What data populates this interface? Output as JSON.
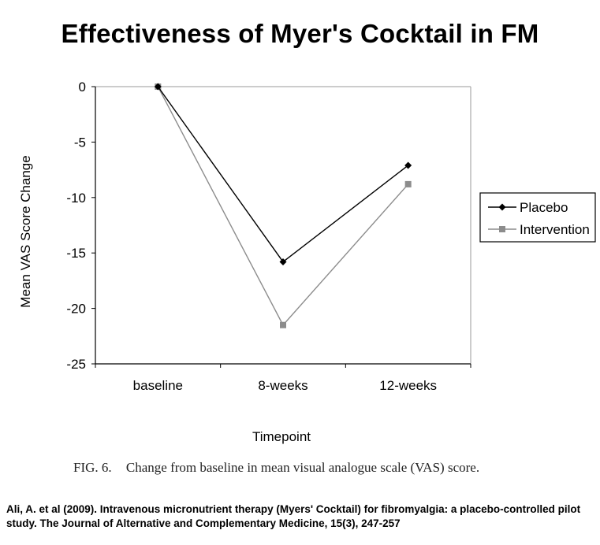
{
  "chart_data": {
    "type": "line",
    "title": "Effectiveness of Myer's Cocktail in FM",
    "categories": [
      "baseline",
      "8-weeks",
      "12-weeks"
    ],
    "series": [
      {
        "name": "Placebo",
        "values": [
          0,
          -15.8,
          -7.1
        ],
        "color": "#000000",
        "marker": "diamond"
      },
      {
        "name": "Intervention",
        "values": [
          0,
          -21.5,
          -8.8
        ],
        "color": "#8c8c8c",
        "marker": "square"
      }
    ],
    "xlabel": "Timepoint",
    "ylabel": "Mean VAS Score Change",
    "ylim": [
      -25,
      0
    ],
    "yticks": [
      "0",
      "-5",
      "-10",
      "-15",
      "-20",
      "-25"
    ],
    "grid": false,
    "legend": "right"
  },
  "caption": {
    "label": "FIG. 6.",
    "text": "Change from baseline in mean visual analogue scale (VAS) score."
  },
  "citation": "Ali, A. et al (2009). Intravenous micronutrient therapy (Myers' Cocktail) for fibromyalgia: a placebo-controlled pilot study. The Journal of Alternative and Complementary Medicine, 15(3), 247-257"
}
